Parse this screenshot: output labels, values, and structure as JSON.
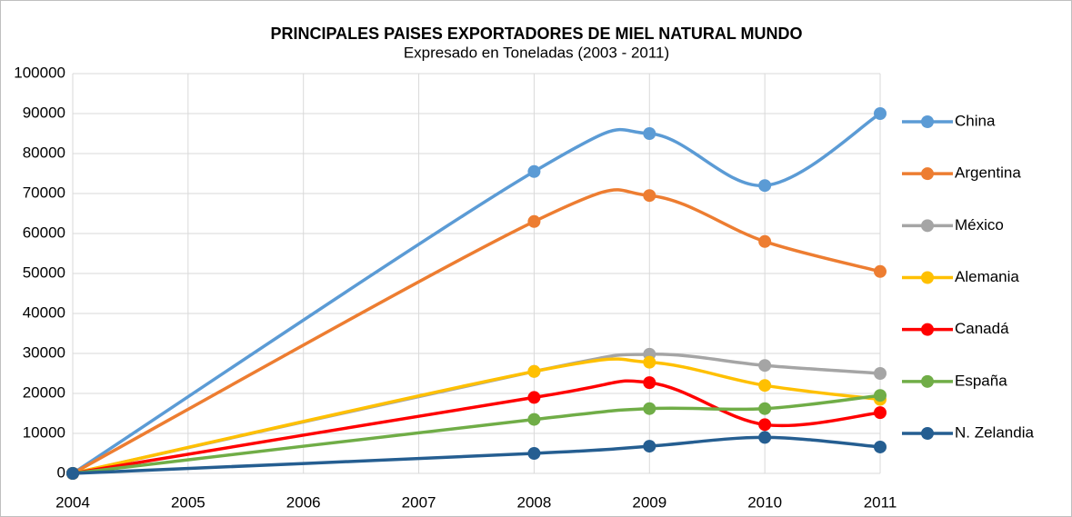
{
  "chart_data": {
    "type": "line",
    "title": "PRINCIPALES PAISES EXPORTADORES DE MIEL NATURAL MUNDO",
    "subtitle": "Expresado en Toneladas (2003 - 2011)",
    "x": [
      2004,
      2008,
      2009,
      2010,
      2011
    ],
    "xlim": [
      2004,
      2011
    ],
    "xticks": [
      2004,
      2005,
      2006,
      2007,
      2008,
      2009,
      2010,
      2011
    ],
    "ylim": [
      0,
      100000
    ],
    "yticks": [
      0,
      10000,
      20000,
      30000,
      40000,
      50000,
      60000,
      70000,
      80000,
      90000,
      100000
    ],
    "grid": true,
    "smooth": true,
    "legend": "right",
    "series": [
      {
        "name": "China",
        "color": "#5b9bd5",
        "values": [
          0,
          75500,
          85000,
          72000,
          90000
        ]
      },
      {
        "name": "Argentina",
        "color": "#ed7d31",
        "values": [
          0,
          63000,
          69500,
          58000,
          50500
        ]
      },
      {
        "name": "México",
        "color": "#a5a5a5",
        "values": [
          0,
          25500,
          29800,
          27000,
          25000
        ]
      },
      {
        "name": "Alemania",
        "color": "#ffc000",
        "values": [
          0,
          25500,
          27800,
          22000,
          18500
        ]
      },
      {
        "name": "Canadá",
        "color": "#ff0000",
        "values": [
          0,
          19000,
          22700,
          12200,
          15200
        ]
      },
      {
        "name": "España",
        "color": "#70ad47",
        "values": [
          0,
          13500,
          16200,
          16200,
          19500
        ]
      },
      {
        "name": "N. Zelandia",
        "color": "#255e91",
        "values": [
          0,
          5000,
          6800,
          9000,
          6600
        ]
      }
    ]
  }
}
